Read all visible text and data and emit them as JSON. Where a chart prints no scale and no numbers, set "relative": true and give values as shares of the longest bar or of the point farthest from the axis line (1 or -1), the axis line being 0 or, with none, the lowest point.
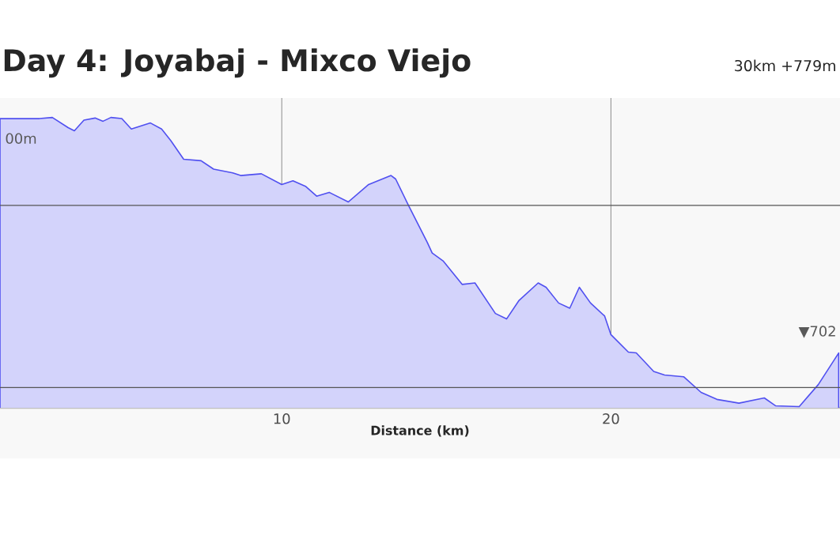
{
  "chart_data": {
    "type": "area",
    "title": "Day 4: Joyabaj - Mixco Viejo",
    "subtitle": "30km +779m",
    "xlabel": "Distance (km)",
    "relative": true,
    "grid": "x",
    "xlim": [
      1.44,
      26.96
    ],
    "xticks": [
      10,
      20
    ],
    "annotations": [
      "00m",
      "▼702"
    ],
    "ref_lines": [
      {
        "axis": "y",
        "value": 0.697,
        "color": "#555555"
      },
      {
        "axis": "y",
        "value": 0.07,
        "color": "#555555"
      }
    ],
    "series": [
      {
        "color": "#5050f0",
        "x": [
          1.44,
          2.64,
          3.03,
          3.51,
          3.7,
          3.99,
          4.33,
          4.57,
          4.81,
          5.14,
          5.43,
          6.01,
          6.35,
          6.63,
          7.02,
          7.55,
          7.93,
          8.51,
          8.75,
          9.38,
          10.0,
          10.34,
          10.72,
          11.06,
          11.44,
          12.02,
          12.64,
          13.32,
          13.46,
          13.85,
          14.42,
          14.57,
          14.9,
          15.48,
          15.87,
          16.49,
          16.83,
          17.21,
          17.79,
          18.03,
          18.41,
          18.75,
          19.04,
          19.38,
          19.81,
          20.0,
          20.53,
          20.77,
          21.3,
          21.63,
          22.21,
          22.74,
          23.22,
          23.89,
          24.66,
          25.0,
          25.72,
          26.3,
          26.92
        ],
        "values": [
          0.996,
          0.996,
          1.0,
          0.965,
          0.954,
          0.991,
          0.998,
          0.987,
          1.0,
          0.996,
          0.96,
          0.981,
          0.96,
          0.92,
          0.856,
          0.851,
          0.822,
          0.809,
          0.8,
          0.806,
          0.769,
          0.782,
          0.763,
          0.729,
          0.742,
          0.709,
          0.769,
          0.8,
          0.788,
          0.697,
          0.57,
          0.533,
          0.506,
          0.425,
          0.43,
          0.325,
          0.306,
          0.37,
          0.43,
          0.415,
          0.361,
          0.343,
          0.415,
          0.361,
          0.316,
          0.252,
          0.192,
          0.189,
          0.125,
          0.113,
          0.107,
          0.053,
          0.029,
          0.016,
          0.034,
          0.007,
          0.004,
          0.08,
          0.189
        ]
      }
    ]
  }
}
